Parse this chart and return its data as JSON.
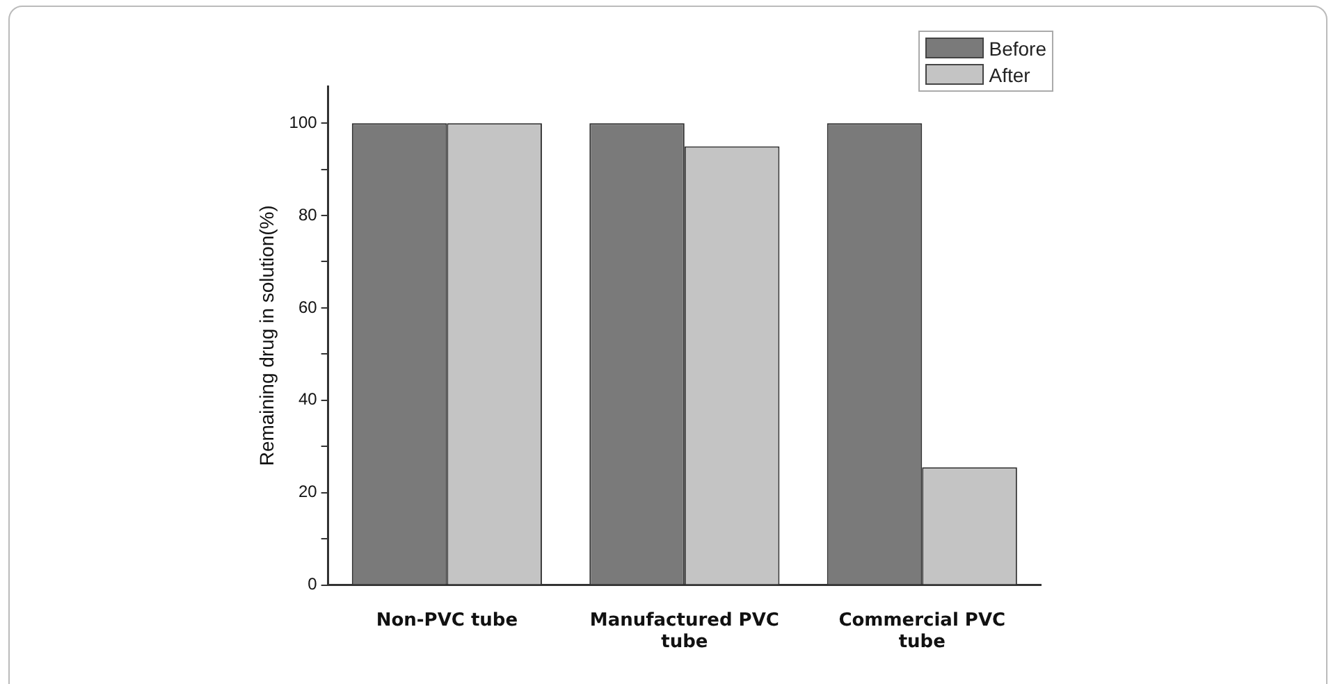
{
  "chart_data": {
    "type": "bar",
    "ylabel": "Remaining drug in solution(%)",
    "categories": [
      "Non-PVC tube",
      "Manufactured PVC tube",
      "Commercial PVC tube"
    ],
    "series": [
      {
        "name": "Before",
        "color": "#7a7a7a",
        "values": [
          100,
          100,
          100
        ]
      },
      {
        "name": "After",
        "color": "#c4c4c4",
        "values": [
          100,
          95,
          25.5
        ]
      }
    ],
    "ylim": [
      0,
      108
    ],
    "yticks": [
      0,
      {
        "value": 10,
        "label": null
      },
      20,
      {
        "value": 30,
        "label": null
      },
      40,
      {
        "value": 50,
        "label": null
      },
      60,
      {
        "value": 70,
        "label": null
      },
      80,
      {
        "value": 90,
        "label": null
      },
      100
    ],
    "grid": false,
    "legend": "top right"
  }
}
